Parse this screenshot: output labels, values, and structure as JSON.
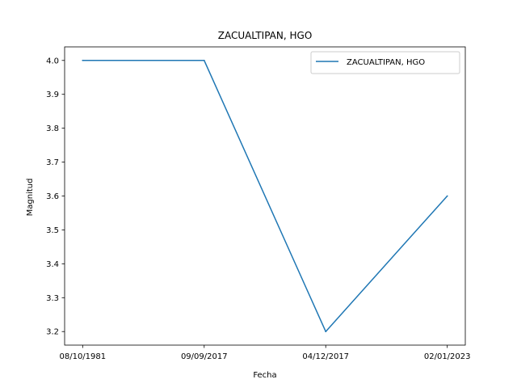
{
  "chart_data": {
    "type": "line",
    "title": "ZACUALTIPAN, HGO",
    "xlabel": "Fecha",
    "ylabel": "Magnitud",
    "categories": [
      "08/10/1981",
      "09/09/2017",
      "04/12/2017",
      "02/01/2023"
    ],
    "series": [
      {
        "name": "ZACUALTIPAN, HGO",
        "values": [
          4.0,
          4.0,
          3.2,
          3.6
        ],
        "color": "#1f77b4"
      }
    ],
    "ylim": [
      3.16,
      4.04
    ],
    "yticks": [
      3.2,
      3.3,
      3.4,
      3.5,
      3.6,
      3.7,
      3.8,
      3.9,
      4.0
    ],
    "ytick_labels": [
      "3.2",
      "3.3",
      "3.4",
      "3.5",
      "3.6",
      "3.7",
      "3.8",
      "3.9",
      "4.0"
    ],
    "grid": false,
    "legend_position": "top-right"
  }
}
